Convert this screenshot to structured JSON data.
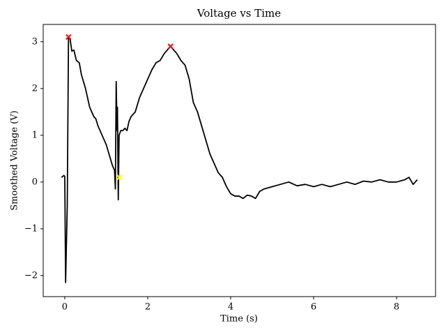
{
  "chart_data": {
    "type": "line",
    "title": "Voltage vs Time",
    "xlabel": "Time (s)",
    "ylabel": "Smoothed Voltage (V)",
    "xlim": [
      -0.52,
      8.94
    ],
    "ylim": [
      -2.45,
      3.37
    ],
    "xticks": [
      0,
      2,
      4,
      6,
      8
    ],
    "yticks": [
      {
        "value": -2,
        "label": "−2"
      },
      {
        "value": -1,
        "label": "−1"
      },
      0,
      1,
      2,
      3
    ],
    "grid": false,
    "series": [
      {
        "color": "#000000",
        "x": [
          -0.08,
          -0.02,
          0.0,
          0.02,
          0.06,
          0.09,
          0.13,
          0.17,
          0.22,
          0.28,
          0.35,
          0.4,
          0.5,
          0.6,
          0.7,
          0.75,
          0.8,
          0.9,
          1.0,
          1.1,
          1.15,
          1.2,
          1.22,
          1.24,
          1.26,
          1.27,
          1.29,
          1.31,
          1.35,
          1.4,
          1.45,
          1.5,
          1.55,
          1.6,
          1.7,
          1.8,
          1.9,
          2.0,
          2.1,
          2.2,
          2.3,
          2.4,
          2.5,
          2.55,
          2.6,
          2.7,
          2.8,
          2.9,
          3.0,
          3.1,
          3.2,
          3.3,
          3.4,
          3.5,
          3.6,
          3.7,
          3.8,
          3.9,
          4.0,
          4.1,
          4.2,
          4.3,
          4.4,
          4.5,
          4.6,
          4.7,
          4.8,
          5.0,
          5.2,
          5.4,
          5.6,
          5.8,
          6.0,
          6.2,
          6.4,
          6.6,
          6.8,
          7.0,
          7.2,
          7.4,
          7.6,
          7.8,
          8.0,
          8.2,
          8.3,
          8.4,
          8.5
        ],
        "values": [
          0.1,
          0.14,
          0.12,
          -2.15,
          -0.5,
          3.1,
          3.05,
          2.8,
          2.82,
          2.6,
          2.55,
          2.3,
          2.0,
          1.6,
          1.4,
          1.35,
          1.2,
          1.0,
          0.8,
          0.5,
          0.35,
          0.25,
          -0.15,
          2.15,
          1.1,
          1.6,
          -0.38,
          1.0,
          1.1,
          1.1,
          1.15,
          1.1,
          1.3,
          1.4,
          1.5,
          1.8,
          2.0,
          2.2,
          2.4,
          2.55,
          2.6,
          2.75,
          2.85,
          2.9,
          2.85,
          2.75,
          2.6,
          2.5,
          2.2,
          1.7,
          1.5,
          1.2,
          0.9,
          0.6,
          0.4,
          0.2,
          0.1,
          -0.1,
          -0.25,
          -0.3,
          -0.3,
          -0.35,
          -0.28,
          -0.3,
          -0.35,
          -0.2,
          -0.15,
          -0.1,
          -0.05,
          0.0,
          -0.08,
          -0.05,
          -0.1,
          -0.05,
          -0.1,
          -0.05,
          0.0,
          -0.05,
          0.02,
          0.0,
          0.05,
          0.0,
          0.0,
          0.05,
          0.1,
          -0.05,
          0.05
        ]
      }
    ],
    "markers": [
      {
        "color": "#ff0000",
        "x": [
          0.09,
          2.55
        ],
        "values": [
          3.1,
          2.9
        ]
      },
      {
        "color": "#ffff00",
        "x": [
          1.32
        ],
        "values": [
          0.1
        ]
      }
    ]
  }
}
